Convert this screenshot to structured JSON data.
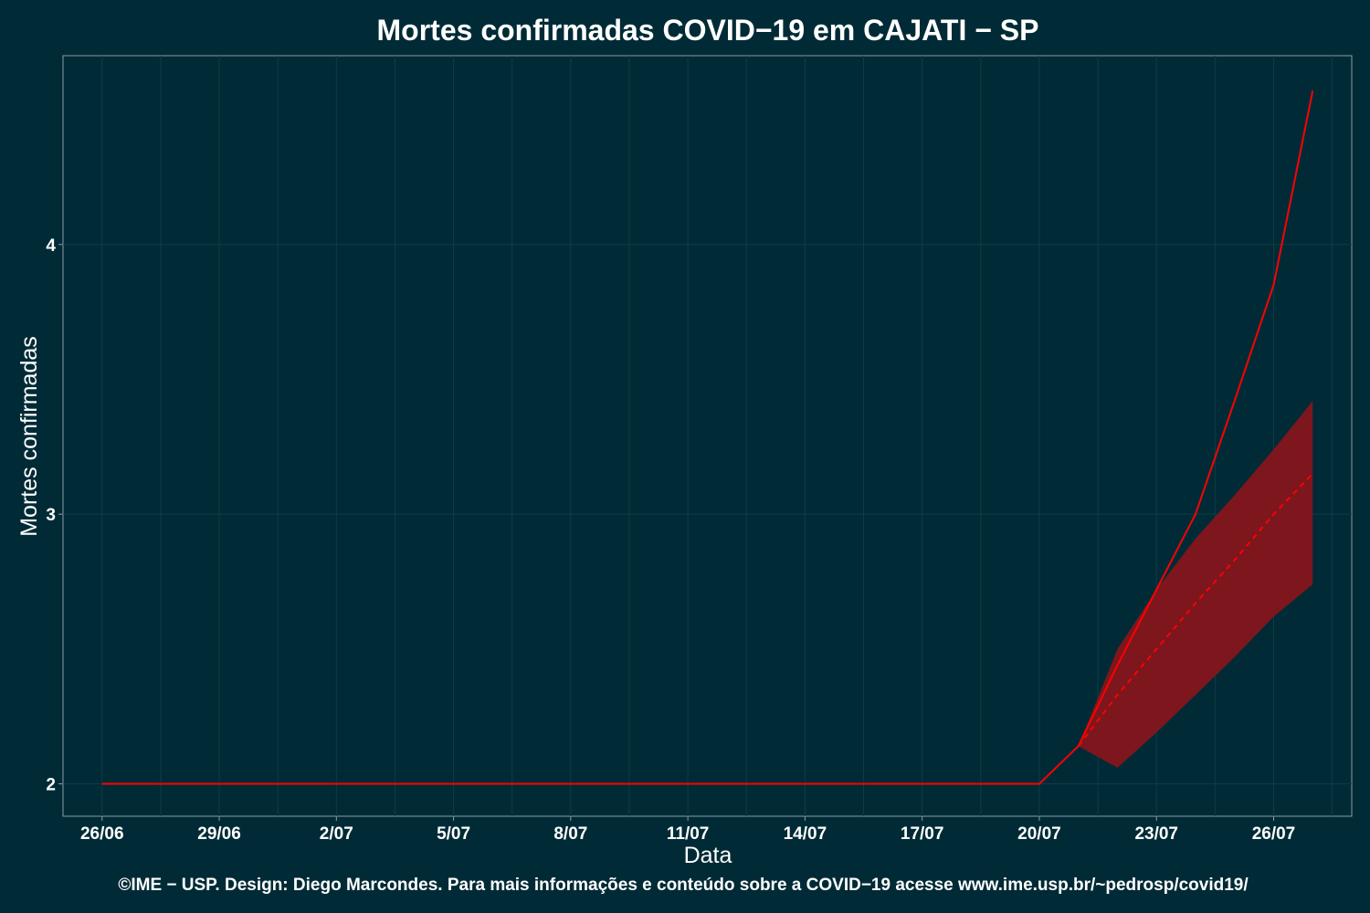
{
  "chart_data": {
    "type": "line",
    "title": "Mortes confirmadas COVID−19 em CAJATI − SP",
    "xlabel": "Data",
    "ylabel": "Mortes confirmadas",
    "footer": "©IME − USP. Design: Diego Marcondes. Para mais informações e conteúdo sobre a COVID−19 acesse www.ime.usp.br/~pedrosp/covid19/",
    "x_ticks": [
      "26/06",
      "29/06",
      "2/07",
      "5/07",
      "8/07",
      "11/07",
      "14/07",
      "17/07",
      "20/07",
      "23/07",
      "26/07"
    ],
    "y_ticks": [
      2,
      3,
      4
    ],
    "xlim": [
      "2020-06-25",
      "2020-07-28"
    ],
    "ylim": [
      1.88,
      4.7
    ],
    "grid": true,
    "colors": {
      "background": "#002b36",
      "grid": "#0e3c47",
      "line": "#ff0000",
      "band": "#7d161d",
      "axis": "#8a9ea3"
    },
    "series": [
      {
        "name": "",
        "style": "solid",
        "x": [
          "2020-06-26",
          "2020-06-27",
          "2020-06-28",
          "2020-06-29",
          "2020-06-30",
          "2020-07-01",
          "2020-07-02",
          "2020-07-03",
          "2020-07-04",
          "2020-07-05",
          "2020-07-06",
          "2020-07-07",
          "2020-07-08",
          "2020-07-09",
          "2020-07-10",
          "2020-07-11",
          "2020-07-12",
          "2020-07-13",
          "2020-07-14",
          "2020-07-15",
          "2020-07-16",
          "2020-07-17",
          "2020-07-18",
          "2020-07-19",
          "2020-07-20",
          "2020-07-21",
          "2020-07-22",
          "2020-07-23",
          "2020-07-24",
          "2020-07-25",
          "2020-07-26",
          "2020-07-27"
        ],
        "y": [
          2,
          2,
          2,
          2,
          2,
          2,
          2,
          2,
          2,
          2,
          2,
          2,
          2,
          2,
          2,
          2,
          2,
          2,
          2,
          2,
          2,
          2,
          2,
          2,
          2,
          2.14,
          2.44,
          2.72,
          3.0,
          3.42,
          3.85,
          4.57
        ]
      },
      {
        "name": "",
        "style": "dashed",
        "x": [
          "2020-07-21",
          "2020-07-22",
          "2020-07-23",
          "2020-07-24",
          "2020-07-25",
          "2020-07-26",
          "2020-07-27"
        ],
        "y": [
          2.14,
          2.33,
          2.5,
          2.67,
          2.83,
          3.0,
          3.15
        ]
      }
    ],
    "band": {
      "x": [
        "2020-07-21",
        "2020-07-22",
        "2020-07-23",
        "2020-07-24",
        "2020-07-25",
        "2020-07-26",
        "2020-07-27"
      ],
      "lower": [
        2.14,
        2.06,
        2.19,
        2.33,
        2.47,
        2.62,
        2.74
      ],
      "upper": [
        2.14,
        2.5,
        2.72,
        2.91,
        3.07,
        3.24,
        3.42
      ]
    }
  }
}
